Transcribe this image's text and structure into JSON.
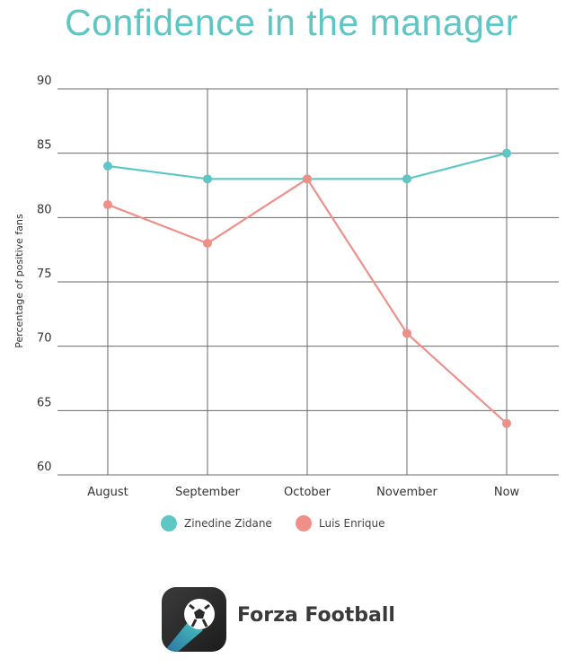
{
  "chart_data": {
    "type": "line",
    "title": "Confidence in the manager",
    "ylabel": "Percentage of positive fans",
    "xlabel": "",
    "categories": [
      "August",
      "September",
      "October",
      "November",
      "Now"
    ],
    "ylim": [
      60,
      90
    ],
    "yticks": [
      60,
      65,
      70,
      75,
      80,
      85,
      90
    ],
    "grid": true,
    "legend_position": "bottom",
    "series": [
      {
        "name": "Zinedine Zidane",
        "color": "#5fc6c6",
        "values": [
          84,
          83,
          83,
          83,
          85
        ]
      },
      {
        "name": "Luis Enrique",
        "color": "#ee8f88",
        "values": [
          81,
          78,
          83,
          71,
          64
        ]
      }
    ]
  },
  "brand": {
    "name": "Forza Football",
    "icon": "football-app-icon",
    "colors": {
      "bg": "#2a2a2a",
      "accent": "#47c6c1"
    }
  }
}
